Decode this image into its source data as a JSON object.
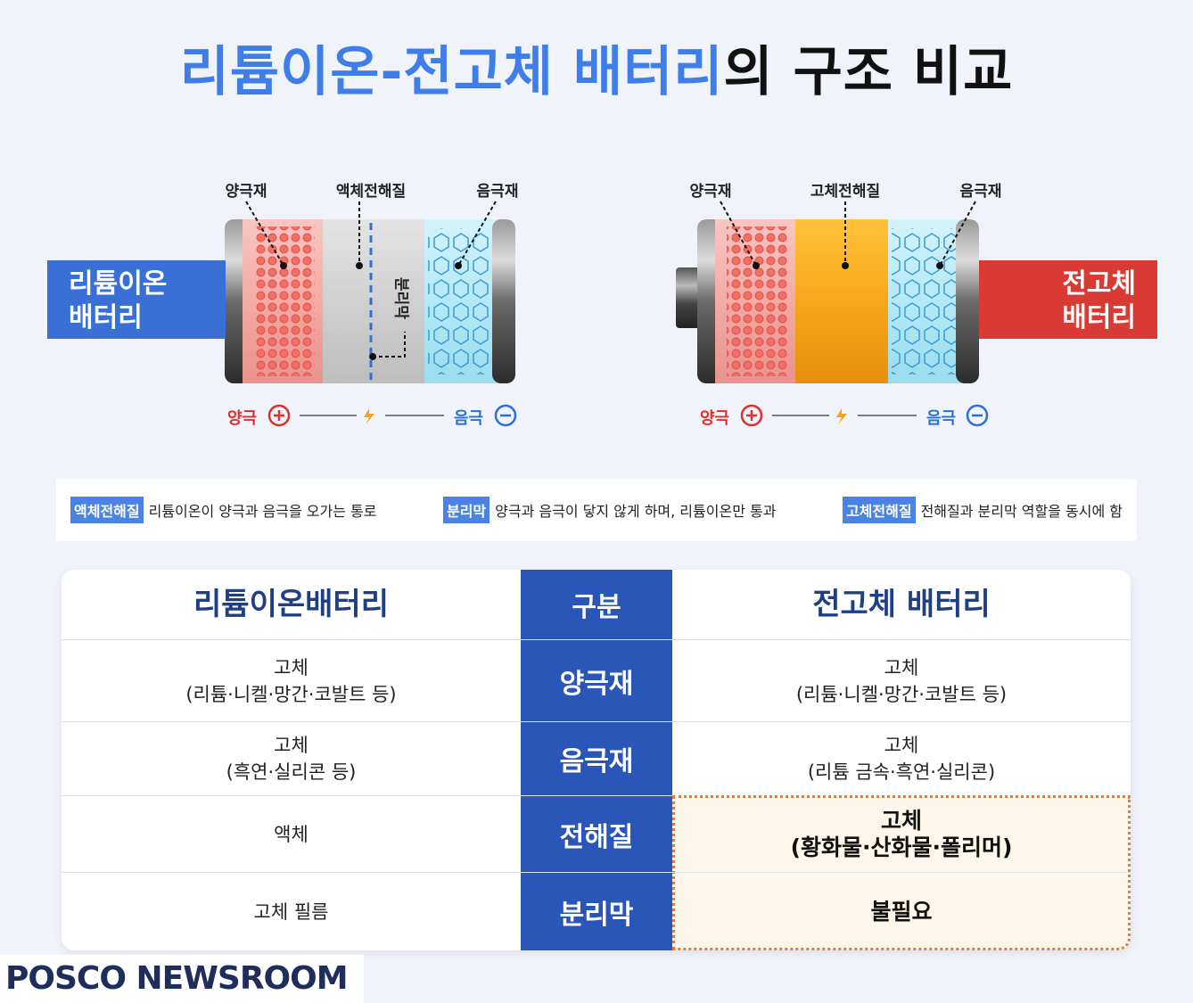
{
  "title": {
    "part_blue": "리튬이온-전고체 배터리",
    "part_dark": "의 구조 비교"
  },
  "left_battery": {
    "tag": "리튬이온\n배터리",
    "labels": {
      "cathode": "양극재",
      "electrolyte": "액체전해질",
      "anode": "음극재",
      "separator": "분리막"
    },
    "positive": "양극",
    "negative": "음극"
  },
  "right_battery": {
    "tag": "전고체\n배터리",
    "labels": {
      "cathode": "양극재",
      "electrolyte": "고체전해질",
      "anode": "음극재"
    },
    "positive": "양극",
    "negative": "음극"
  },
  "legend": [
    {
      "key": "액체전해질",
      "text": "리튬이온이 양극과 음극을 오가는 통로"
    },
    {
      "key": "분리막",
      "text": "양극과 음극이 닿지 않게 하며, 리튬이온만 통과"
    },
    {
      "key": "고체전해질",
      "text": "전해질과 분리막 역할을 동시에 함"
    }
  ],
  "table": {
    "header": {
      "left": "리튬이온배터리",
      "mid": "구분",
      "right": "전고체 배터리"
    },
    "rows": [
      {
        "label": "양극재",
        "left": "고체\n(리튬·니켈·망간·코발트 등)",
        "right": "고체\n(리튬·니켈·망간·코발트 등)"
      },
      {
        "label": "음극재",
        "left": "고체\n(흑연·실리콘 등)",
        "right": "고체\n(리튬 금속·흑연·실리콘)"
      },
      {
        "label": "전해질",
        "left": "액체",
        "right": "고체\n(황화물·산화물·폴리머)"
      },
      {
        "label": "분리막",
        "left": "고체 필름",
        "right": "불필요"
      }
    ]
  },
  "brand": "POSCO NEWSROOM",
  "colors": {
    "blue": "#3f7ee8",
    "red": "#d93a33",
    "navy": "#2a56b8",
    "highlight": "#e8793a"
  }
}
